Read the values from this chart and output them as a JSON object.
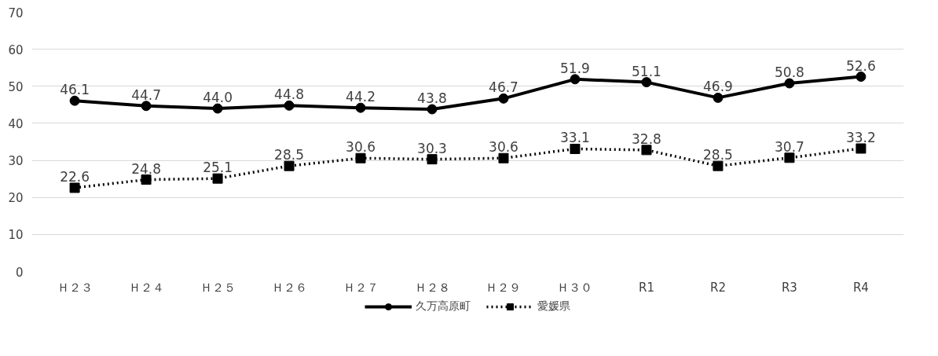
{
  "chart_data": {
    "type": "line",
    "categories": [
      "Ｈ２３",
      "Ｈ２４",
      "Ｈ２５",
      "Ｈ２６",
      "Ｈ２７",
      "Ｈ２８",
      "Ｈ２９",
      "Ｈ３０",
      "R1",
      "R2",
      "R3",
      "R4"
    ],
    "series": [
      {
        "name": "久万高原町",
        "color": "#000000",
        "marker": "circle",
        "line_style": "solid",
        "values": [
          46.1,
          44.7,
          44.0,
          44.8,
          44.2,
          43.8,
          46.7,
          51.9,
          51.1,
          46.9,
          50.8,
          52.6
        ],
        "value_labels": [
          "46.1",
          "44.7",
          "44.0",
          "44.8",
          "44.2",
          "43.8",
          "46.7",
          "51.9",
          "51.1",
          "46.9",
          "50.8",
          "52.6"
        ]
      },
      {
        "name": "愛媛県",
        "color": "#000000",
        "marker": "square",
        "line_style": "dotted",
        "values": [
          22.6,
          24.8,
          25.1,
          28.5,
          30.6,
          30.3,
          30.6,
          33.1,
          32.8,
          28.5,
          30.7,
          33.2
        ],
        "value_labels": [
          "22.6",
          "24.8",
          "25.1",
          "28.5",
          "30.6",
          "30.3",
          "30.6",
          "33.1",
          "32.8",
          "28.5",
          "30.7",
          "33.2"
        ]
      }
    ],
    "ylim": [
      0,
      70
    ],
    "yticks": [
      0,
      10,
      20,
      30,
      40,
      50,
      60,
      70
    ],
    "grid": "y",
    "legend": "bottom"
  }
}
